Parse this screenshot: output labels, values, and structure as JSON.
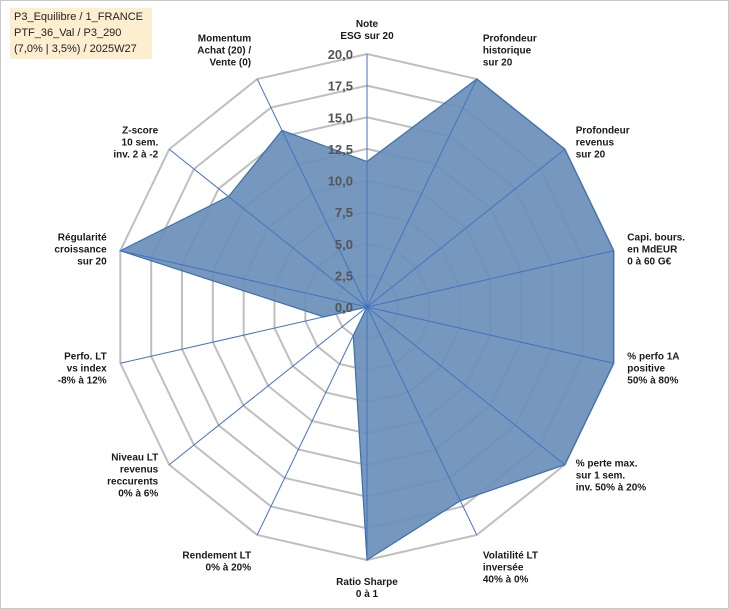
{
  "info_box": {
    "line1": "P3_Equilibre / 1_FRANCE",
    "line2": "PTF_36_Val / P3_290",
    "line3": "(7,0% | 3,5%) / 2025W27"
  },
  "colors": {
    "fill": "#6a8fb8",
    "stroke": "#3d6fb0",
    "spoke": "#4472c4",
    "grid": "#bfbfbf"
  },
  "chart_data": {
    "type": "radar",
    "title": "",
    "rmin": 0,
    "rmax": 20,
    "ticks": [
      "0,0",
      "2,5",
      "5,0",
      "7,5",
      "10,0",
      "12,5",
      "15,0",
      "17,5",
      "20,0"
    ],
    "tick_values": [
      0,
      2.5,
      5,
      7.5,
      10,
      12.5,
      15,
      17.5,
      20
    ],
    "categories": [
      [
        "Note",
        "ESG sur 20"
      ],
      [
        "Profondeur",
        "historique",
        "sur 20"
      ],
      [
        "Profondeur",
        "revenus",
        "sur 20"
      ],
      [
        "Capi. bours.",
        "en MdEUR",
        "0 à 60 G€"
      ],
      [
        "% perfo 1A",
        "positive",
        "50% à 80%"
      ],
      [
        "% perte max.",
        "sur 1 sem.",
        "inv. 50% à 20%"
      ],
      [
        "Volatilité LT",
        "inversée",
        "40% à 0%"
      ],
      [
        "Ratio Sharpe",
        "0 à 1"
      ],
      [
        "Rendement LT",
        "0% à 20%"
      ],
      [
        "Niveau LT",
        "revenus",
        "reccurents",
        "0% à 6%"
      ],
      [
        "Perfo. LT",
        "vs index",
        "-8% à 12%"
      ],
      [
        "Régularité",
        "croissance",
        "sur 20"
      ],
      [
        "Z-score",
        "10 sem.",
        "inv. 2 à -2"
      ],
      [
        "Momentum",
        "Achat (20) /",
        "Vente (0)"
      ]
    ],
    "series": [
      {
        "values": [
          11.5,
          20,
          20,
          20,
          20,
          20,
          17,
          20,
          2.5,
          0,
          3.5,
          20,
          14,
          15.5
        ]
      }
    ],
    "grid": true,
    "legend": "none"
  }
}
